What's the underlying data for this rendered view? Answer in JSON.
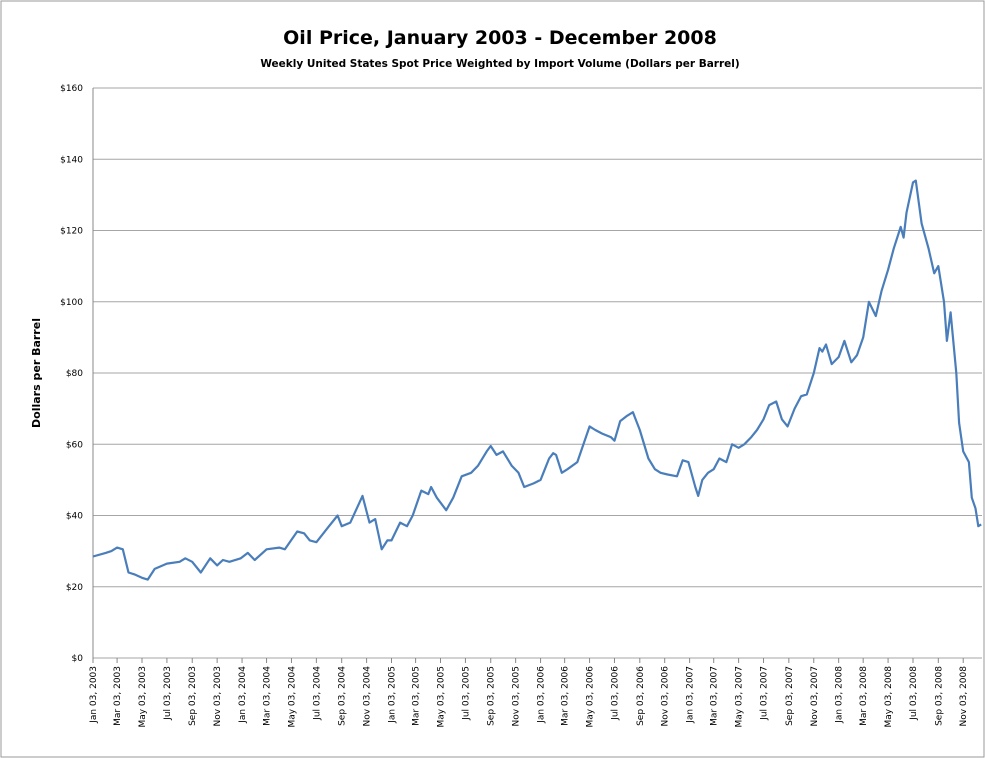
{
  "chart_data": {
    "type": "line",
    "title": "Oil Price, January 2003 - December 2008",
    "subtitle": "Weekly United States Spot Price Weighted by Import Volume (Dollars per Barrel)",
    "y_label": "Dollars per Barrel",
    "x": [
      "Jan 03, 2003",
      "Feb 03, 2003",
      "Feb 17, 2003",
      "Mar 03, 2003",
      "Mar 17, 2003",
      "Mar 31, 2003",
      "Apr 14, 2003",
      "May 03, 2003",
      "May 17, 2003",
      "Jun 03, 2003",
      "Jul 03, 2003",
      "Aug 03, 2003",
      "Aug 17, 2003",
      "Sep 03, 2003",
      "Sep 24, 2003",
      "Oct 17, 2003",
      "Nov 03, 2003",
      "Nov 17, 2003",
      "Dec 03, 2003",
      "Dec 31, 2003",
      "Jan 17, 2004",
      "Feb 03, 2004",
      "Mar 03, 2004",
      "Apr 03, 2004",
      "Apr 17, 2004",
      "May 17, 2004",
      "Jun 03, 2004",
      "Jun 17, 2004",
      "Jul 03, 2004",
      "Aug 03, 2004",
      "Aug 24, 2004",
      "Sep 03, 2004",
      "Sep 24, 2004",
      "Oct 24, 2004",
      "Nov 10, 2004",
      "Nov 24, 2004",
      "Dec 10, 2004",
      "Dec 24, 2004",
      "Jan 03, 2005",
      "Jan 24, 2005",
      "Feb 10, 2005",
      "Feb 24, 2005",
      "Mar 17, 2005",
      "Apr 03, 2005",
      "Apr 10, 2005",
      "Apr 24, 2005",
      "May 17, 2005",
      "Jun 03, 2005",
      "Jun 24, 2005",
      "Jul 17, 2005",
      "Aug 03, 2005",
      "Aug 24, 2005",
      "Sep 03, 2005",
      "Sep 17, 2005",
      "Oct 03, 2005",
      "Oct 24, 2005",
      "Nov 10, 2005",
      "Nov 24, 2005",
      "Dec 17, 2005",
      "Jan 03, 2006",
      "Jan 10, 2006",
      "Jan 24, 2006",
      "Feb 03, 2006",
      "Feb 10, 2006",
      "Feb 24, 2006",
      "Mar 10, 2006",
      "Apr 03, 2006",
      "Apr 24, 2006",
      "May 03, 2006",
      "May 17, 2006",
      "Jun 03, 2006",
      "Jun 24, 2006",
      "Jul 03, 2006",
      "Jul 17, 2006",
      "Aug 03, 2006",
      "Aug 17, 2006",
      "Sep 03, 2006",
      "Sep 24, 2006",
      "Oct 10, 2006",
      "Oct 24, 2006",
      "Nov 10, 2006",
      "Dec 03, 2006",
      "Dec 17, 2006",
      "Dec 31, 2006",
      "Jan 17, 2007",
      "Jan 24, 2007",
      "Feb 03, 2007",
      "Feb 17, 2007",
      "Mar 03, 2007",
      "Mar 17, 2007",
      "Apr 03, 2007",
      "Apr 17, 2007",
      "May 03, 2007",
      "May 17, 2007",
      "Jun 03, 2007",
      "Jun 17, 2007",
      "Jul 03, 2007",
      "Jul 17, 2007",
      "Aug 03, 2007",
      "Aug 17, 2007",
      "Aug 31, 2007",
      "Sep 17, 2007",
      "Oct 03, 2007",
      "Oct 17, 2007",
      "Nov 03, 2007",
      "Nov 17, 2007",
      "Nov 24, 2007",
      "Dec 03, 2007",
      "Dec 17, 2007",
      "Jan 03, 2008",
      "Jan 17, 2008",
      "Feb 03, 2008",
      "Feb 17, 2008",
      "Mar 03, 2008",
      "Mar 17, 2008",
      "Apr 03, 2008",
      "Apr 17, 2008",
      "May 03, 2008",
      "May 17, 2008",
      "Jun 03, 2008",
      "Jun 10, 2008",
      "Jun 17, 2008",
      "Jul 03, 2008",
      "Jul 10, 2008",
      "Jul 24, 2008",
      "Aug 10, 2008",
      "Aug 24, 2008",
      "Sep 03, 2008",
      "Sep 17, 2008",
      "Sep 24, 2008",
      "Oct 03, 2008",
      "Oct 17, 2008",
      "Oct 24, 2008",
      "Nov 03, 2008",
      "Nov 17, 2008",
      "Nov 24, 2008",
      "Dec 03, 2008",
      "Dec 10, 2008",
      "Dec 17, 2008"
    ],
    "series": [
      {
        "name": "Oil Price",
        "color": "#4a7ebb",
        "values": [
          28.5,
          29.5,
          30,
          31,
          30.5,
          24,
          23.5,
          22.5,
          22,
          25,
          26.5,
          27,
          28,
          27,
          24,
          28,
          26,
          27.5,
          27,
          28,
          29.5,
          27.5,
          30.5,
          31,
          30.5,
          35.5,
          35,
          33,
          32.5,
          37,
          40,
          37,
          38,
          45.5,
          38,
          39,
          30.5,
          33,
          33,
          38,
          37,
          40,
          47,
          46,
          48,
          45,
          41.5,
          45,
          51,
          52,
          54,
          58,
          59.5,
          57,
          58,
          54,
          52,
          48,
          49,
          50,
          52,
          56,
          57.5,
          57,
          52,
          53,
          55,
          62,
          65,
          64,
          63,
          62,
          61,
          66.5,
          68,
          69,
          64,
          56,
          53,
          52,
          51.5,
          51,
          55.5,
          55,
          48,
          45.5,
          50,
          52,
          53,
          56,
          55,
          60,
          59,
          60,
          62,
          64,
          67,
          71,
          72,
          67,
          65,
          70,
          73.5,
          74,
          80,
          87,
          86,
          88,
          82.5,
          84.5,
          89,
          83,
          85,
          90,
          100,
          96,
          103,
          109,
          115,
          121,
          118,
          125,
          133.5,
          134,
          122,
          115,
          108,
          110,
          100,
          89,
          97,
          80,
          66,
          58,
          55,
          45,
          42,
          37,
          37.5
        ]
      }
    ],
    "xlim": [
      "Jan 03, 2003",
      "Dec 19, 2008"
    ],
    "xticks": [
      "Jan 03, 2003",
      "Mar 03, 2003",
      "May 03, 2003",
      "Jul 03, 2003",
      "Sep 03, 2003",
      "Nov 03, 2003",
      "Jan 03, 2004",
      "Mar 03, 2004",
      "May 03, 2004",
      "Jul 03, 2004",
      "Sep 03, 2004",
      "Nov 03, 2004",
      "Jan 03, 2005",
      "Mar 03, 2005",
      "May 03, 2005",
      "Jul 03, 2005",
      "Sep 03, 2005",
      "Nov 03, 2005",
      "Jan 03, 2006",
      "Mar 03, 2006",
      "May 03, 2006",
      "Jul 03, 2006",
      "Sep 03, 2006",
      "Nov 03, 2006",
      "Jan 03, 2007",
      "Mar 03, 2007",
      "May 03, 2007",
      "Jul 03, 2007",
      "Sep 03, 2007",
      "Nov 03, 2007",
      "Jan 03, 2008",
      "Mar 03, 2008",
      "May 03, 2008",
      "Jul 03, 2008",
      "Sep 03, 2008",
      "Nov 03, 2008"
    ],
    "ylim": [
      0,
      160
    ],
    "yticks": [
      {
        "value": 0,
        "label": "$0"
      },
      {
        "value": 20,
        "label": "$20"
      },
      {
        "value": 40,
        "label": "$40"
      },
      {
        "value": 60,
        "label": "$60"
      },
      {
        "value": 80,
        "label": "$80"
      },
      {
        "value": 100,
        "label": "$100"
      },
      {
        "value": 120,
        "label": "$120"
      },
      {
        "value": 140,
        "label": "$140"
      },
      {
        "value": 160,
        "label": "$160"
      }
    ],
    "grid": true
  }
}
